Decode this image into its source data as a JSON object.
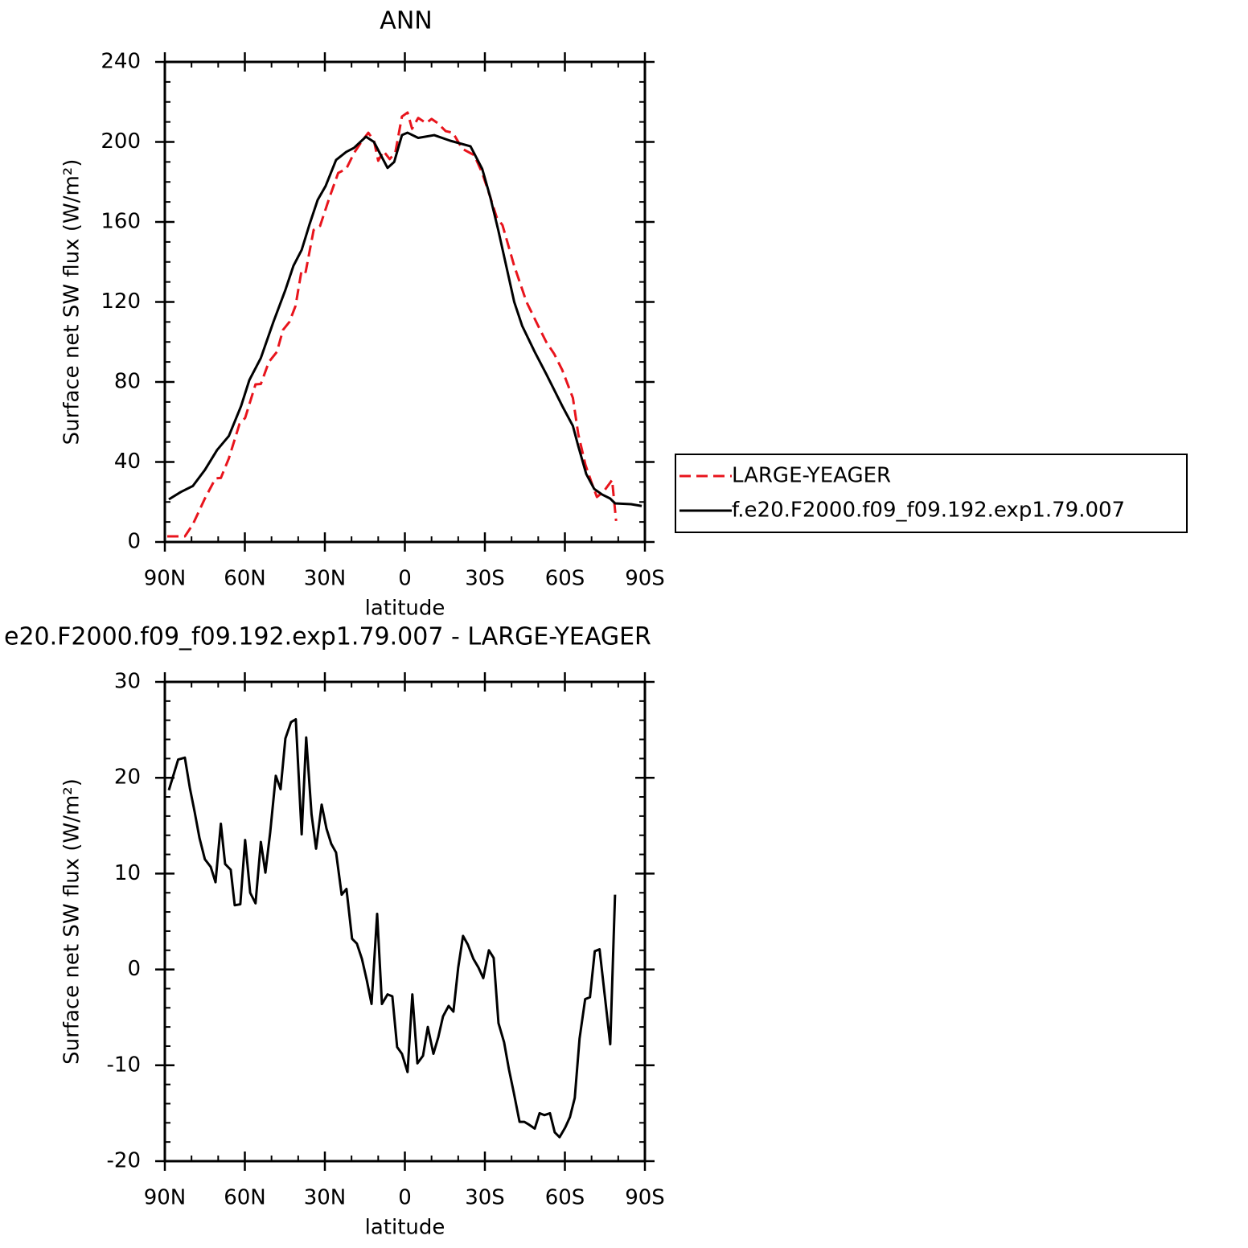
{
  "chart_data": [
    {
      "type": "line",
      "title": "ANN",
      "xlabel": "latitude",
      "ylabel": "Surface net SW flux (W/m²)",
      "xlim": [
        90,
        -90
      ],
      "ylim": [
        0,
        240
      ],
      "xticks": [
        {
          "value": 90,
          "label": "90N"
        },
        {
          "value": 60,
          "label": "60N"
        },
        {
          "value": 30,
          "label": "30N"
        },
        0,
        {
          "value": -30,
          "label": "30S"
        },
        {
          "value": -60,
          "label": "60S"
        },
        {
          "value": -90,
          "label": "90S"
        }
      ],
      "xminorticks": [
        80,
        70,
        50,
        40,
        20,
        10,
        -10,
        -20,
        -40,
        -50,
        -70,
        -80
      ],
      "yticks": [
        0,
        40,
        80,
        120,
        160,
        200,
        240
      ],
      "yminorticks": [
        10,
        20,
        30,
        50,
        60,
        70,
        90,
        100,
        110,
        130,
        140,
        150,
        170,
        180,
        190,
        210,
        220,
        230
      ],
      "legend": "right",
      "series": [
        {
          "name": "LARGE-YEAGER",
          "color": "#e8141c",
          "dashed": true,
          "x": [
            89.1,
            82.5,
            79.5,
            75,
            71,
            69,
            66,
            62,
            59.9,
            56,
            54,
            51,
            48,
            45.7,
            43.3,
            41,
            38.7,
            37.2,
            34.2,
            31.8,
            28.2,
            25,
            22,
            19,
            16,
            13.7,
            11.6,
            10,
            8,
            5.7,
            3.6,
            1.1,
            -1,
            -2.7,
            -5,
            -8,
            -10,
            -12.3,
            -15.3,
            -18,
            -21.5,
            -26,
            -29,
            -32,
            -34.4,
            -36.6,
            -41,
            -45.6,
            -50,
            -53,
            -56,
            -59,
            -63,
            -65,
            -67.7,
            -70,
            -72,
            -74.4,
            -77,
            -77.7,
            -79.2
          ],
          "values": [
            2.8,
            2.8,
            8.8,
            21.7,
            31.8,
            32,
            41.8,
            59,
            62,
            78.8,
            79,
            90,
            95,
            106,
            110,
            118,
            136,
            135,
            156,
            158,
            172.5,
            184.5,
            186.5,
            194.6,
            200.6,
            204.6,
            200.6,
            190.6,
            195.4,
            191.4,
            194.6,
            212.7,
            214.7,
            206.6,
            212,
            209.4,
            211.5,
            209.4,
            205.4,
            204.6,
            196.6,
            193.4,
            184.5,
            172.5,
            162.4,
            158.4,
            138,
            120,
            108,
            100,
            94,
            86,
            72,
            54,
            38.6,
            29.7,
            22.5,
            25,
            29.7,
            31,
            10.5
          ]
        },
        {
          "name": "f.e20.F2000.f09_f09.192.exp1.79.007",
          "color": "#000000",
          "dashed": false,
          "x": [
            88.5,
            84,
            79.5,
            75,
            70.4,
            66,
            61.4,
            58.3,
            54,
            49.3,
            44.8,
            41.8,
            38.7,
            35.7,
            32.7,
            29.7,
            25.8,
            22,
            19.1,
            14.6,
            11.6,
            6.5,
            4,
            1.1,
            -1,
            -5,
            -11,
            -17,
            -24.6,
            -29,
            -32,
            -35,
            -38,
            -41,
            -44,
            -48.7,
            -53,
            -59,
            -63,
            -65,
            -68,
            -71,
            -74,
            -77,
            -78.8,
            -84.8,
            -88.8
          ],
          "values": [
            21.3,
            25,
            28,
            36,
            46,
            53,
            68,
            81,
            92,
            110,
            126,
            138,
            146,
            159,
            171,
            178,
            191,
            195,
            197,
            202.6,
            200,
            187,
            190,
            203.4,
            204.6,
            202,
            203.4,
            200.6,
            197.8,
            186.5,
            172.5,
            156,
            138,
            120,
            108,
            95,
            84,
            68,
            58,
            48,
            34,
            26.5,
            23.7,
            21.7,
            19.3,
            18.9,
            18
          ]
        }
      ]
    },
    {
      "type": "line",
      "title": "e20.F2000.f09_f09.192.exp1.79.007 - LARGE-YEAGER",
      "xlabel": "latitude",
      "ylabel": "Surface net SW flux (W/m²)",
      "xlim": [
        90,
        -90
      ],
      "ylim": [
        -20,
        30
      ],
      "xticks": [
        {
          "value": 90,
          "label": "90N"
        },
        {
          "value": 60,
          "label": "60N"
        },
        {
          "value": 30,
          "label": "30N"
        },
        0,
        {
          "value": -30,
          "label": "30S"
        },
        {
          "value": -60,
          "label": "60S"
        },
        {
          "value": -90,
          "label": "90S"
        }
      ],
      "xminorticks": [
        80,
        70,
        50,
        40,
        20,
        10,
        -10,
        -20,
        -40,
        -50,
        -70,
        -80
      ],
      "yticks": [
        -20,
        -10,
        0,
        10,
        20,
        30
      ],
      "yminorticks": [
        -18,
        -16,
        -14,
        -12,
        -8,
        -6,
        -4,
        -2,
        2,
        4,
        6,
        8,
        12,
        14,
        16,
        18,
        22,
        24,
        26,
        28
      ],
      "series": [
        {
          "color": "#000000",
          "dashed": false,
          "x": [
            88.5,
            85,
            82.5,
            80.6,
            78.8,
            77,
            75,
            72.8,
            71,
            69,
            67.4,
            65.3,
            63.8,
            61.7,
            59.9,
            58,
            56,
            54,
            52.3,
            50.5,
            48.4,
            46.6,
            44.8,
            42.7,
            40.9,
            38.7,
            37,
            35,
            33.3,
            31.2,
            29.4,
            27.6,
            25.8,
            23.7,
            21.9,
            19.8,
            18,
            16.1,
            14.3,
            12.5,
            10.4,
            8.6,
            6.5,
            4.7,
            2.9,
            1.1,
            -1,
            -2.8,
            -4.7,
            -6.8,
            -8.6,
            -10.7,
            -12.5,
            -14.3,
            -16.4,
            -18.2,
            -20,
            -21.8,
            -23.6,
            -25.7,
            -27.6,
            -29.4,
            -31.5,
            -33.3,
            -35.1,
            -37.2,
            -39,
            -40.8,
            -43,
            -44.8,
            -46.6,
            -48.7,
            -50.5,
            -52.3,
            -54.4,
            -56.2,
            -58,
            -60.1,
            -61.9,
            -63.7,
            -65.5,
            -67.6,
            -69.4,
            -71.2,
            -73,
            -74.9,
            -77,
            -78.8
          ],
          "values": [
            18.7,
            21.9,
            22.1,
            18.9,
            16.4,
            13.7,
            11.5,
            10.7,
            9.1,
            15.2,
            11,
            10.4,
            6.7,
            6.8,
            13.5,
            8,
            6.9,
            13.3,
            10.1,
            14.3,
            20.2,
            18.8,
            24.1,
            25.8,
            26.1,
            14.1,
            24.2,
            16.2,
            12.6,
            17.2,
            14.7,
            13.1,
            12.2,
            7.8,
            8.4,
            3.2,
            2.7,
            1.1,
            -1.1,
            -3.6,
            5.8,
            -3.6,
            -2.6,
            -2.8,
            -8.1,
            -8.8,
            -10.7,
            -2.6,
            -9.8,
            -9,
            -6,
            -8.8,
            -7.1,
            -4.9,
            -3.8,
            -4.4,
            0.2,
            3.5,
            2.6,
            1.1,
            0.2,
            -0.9,
            2,
            1.2,
            -5.6,
            -7.6,
            -10.4,
            -12.8,
            -15.9,
            -15.9,
            -16.2,
            -16.6,
            -15,
            -15.2,
            -15,
            -17,
            -17.5,
            -16.5,
            -15.4,
            -13.4,
            -7.2,
            -3.1,
            -2.9,
            1.9,
            2.1,
            -2.6,
            -7.8,
            7.8
          ]
        }
      ]
    }
  ]
}
